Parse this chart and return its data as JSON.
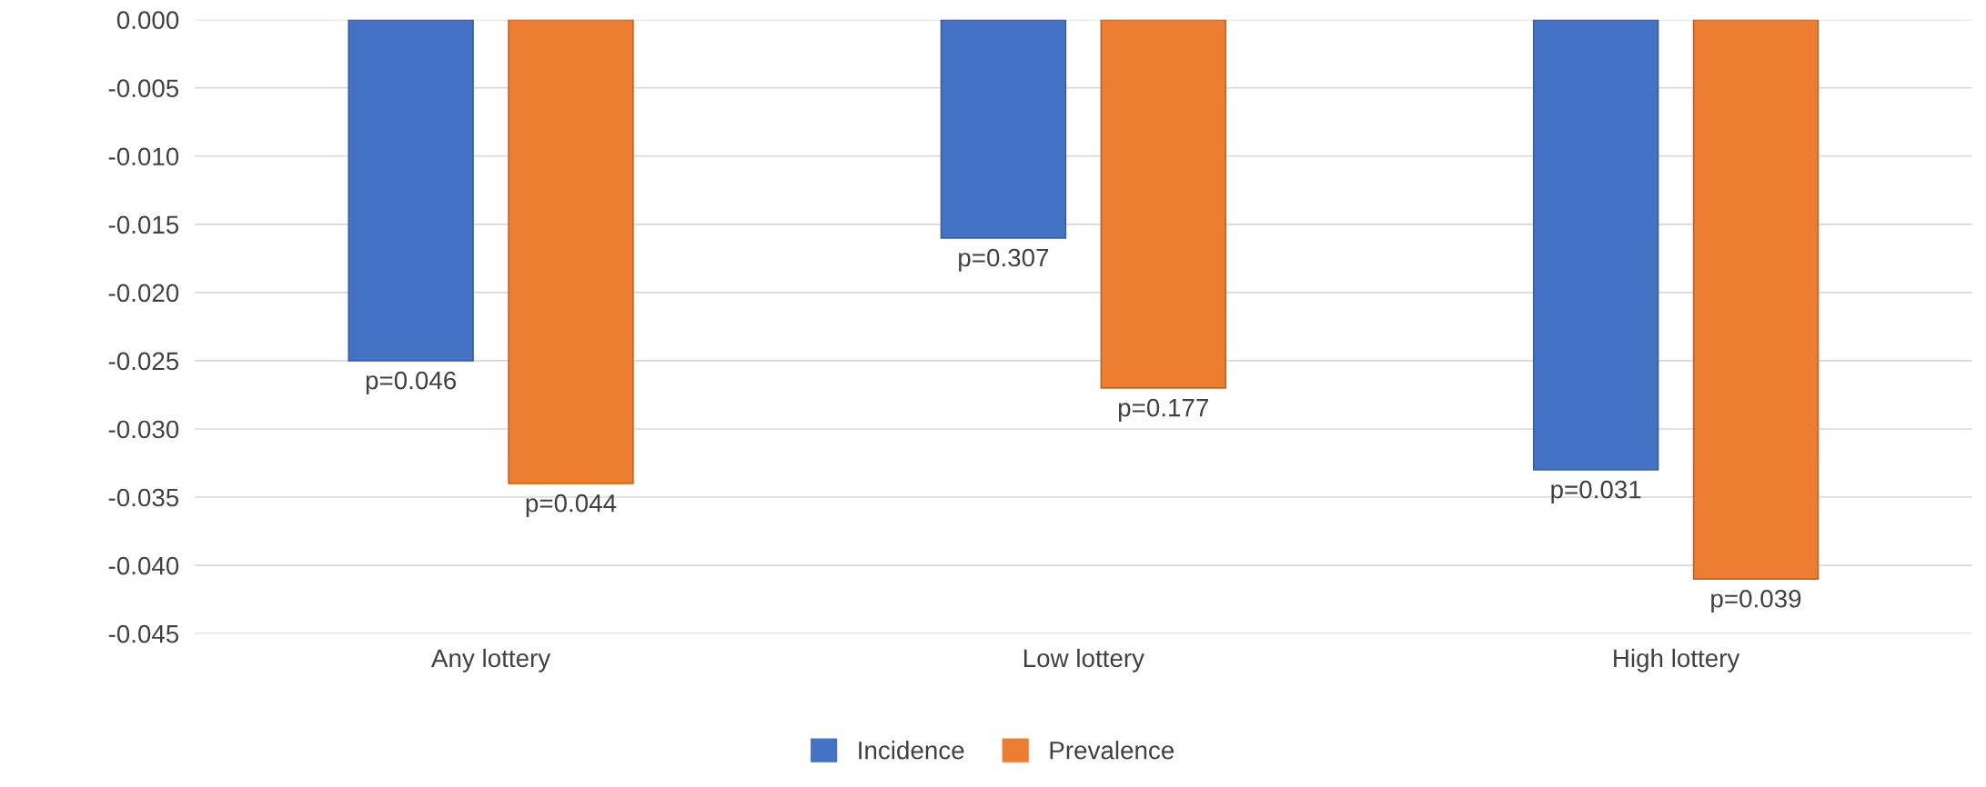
{
  "chart_data": {
    "type": "bar",
    "categories": [
      "Any lottery",
      "Low lottery",
      "High lottery"
    ],
    "series": [
      {
        "name": "Incidence",
        "color": "#4472c4",
        "values": [
          -0.025,
          -0.016,
          -0.033
        ]
      },
      {
        "name": "Prevalence",
        "color": "#ed7d31",
        "values": [
          -0.034,
          -0.027,
          -0.041
        ]
      }
    ],
    "annotations": [
      "p=0.046",
      "p=0.044",
      "p=0.307",
      "p=0.177",
      "p=0.031",
      "p=0.039"
    ],
    "ylim": [
      -0.045,
      0
    ],
    "yticks": [
      {
        "value": 0,
        "label": "0.000"
      },
      {
        "value": -0.005,
        "label": "-0.005"
      },
      {
        "value": -0.01,
        "label": "-0.010"
      },
      {
        "value": -0.015,
        "label": "-0.015"
      },
      {
        "value": -0.02,
        "label": "-0.020"
      },
      {
        "value": -0.025,
        "label": "-0.025"
      },
      {
        "value": -0.03,
        "label": "-0.030"
      },
      {
        "value": -0.035,
        "label": "-0.035"
      },
      {
        "value": -0.04,
        "label": "-0.040"
      },
      {
        "value": -0.045,
        "label": "-0.045"
      }
    ],
    "grid": "y",
    "legend": "bottom"
  }
}
